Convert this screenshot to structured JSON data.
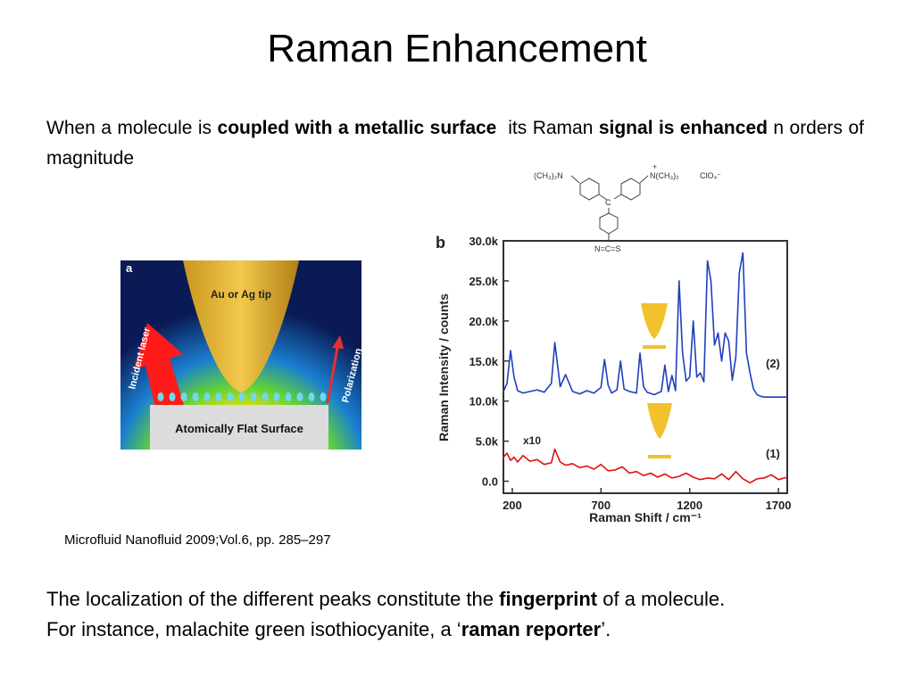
{
  "slide": {
    "title": "Raman Enhancement",
    "intro": {
      "part1": "When a molecule is ",
      "bold1": "coupled with a metallic surface",
      "part2": "  its Raman ",
      "bold2": "signal is enhanced",
      "part3": " n orders of magnitude"
    },
    "citation": "Microfluid Nanofluid 2009;Vol.6, pp. 285–297",
    "bottom": {
      "line1_part1": "The localization of the different peaks constitute the ",
      "line1_bold": "fingerprint",
      "line1_part2": " of a molecule.",
      "line2_part1": "For instance, malachite green isothiocyanite, a ‘",
      "line2_bold": "raman reporter",
      "line2_part2": "’."
    }
  },
  "panel_a": {
    "label": "a",
    "tip_label": "Au or Ag tip",
    "laser_label": "Incident laser",
    "polarization_label": "Polarization",
    "surface_label": "Atomically Flat Surface"
  },
  "molecule": {
    "left_group": "(CH₃)₂N",
    "right_group": "N(CH₃)₂",
    "charge": "+",
    "counter_ion": "ClO₄⁻",
    "center_atom": "C",
    "bottom_group": "N=C=S"
  },
  "panel_b": {
    "label": "b",
    "series_labels": [
      "(2)",
      "(1)"
    ],
    "multiplier_label": "x10",
    "colors": {
      "series2": "#1f3fbf",
      "series1": "#e01010"
    }
  },
  "chart_data": {
    "type": "line",
    "xlabel": "Raman Shift / cm⁻¹",
    "ylabel": "Raman Intensity / counts",
    "xlim": [
      150,
      1750
    ],
    "ylim": [
      -1500,
      30000
    ],
    "x_ticks": [
      "200",
      "700",
      "1200",
      "1700"
    ],
    "y_ticks": [
      "0.0",
      "5.0k",
      "10.0k",
      "15.0k",
      "20.0k",
      "25.0k",
      "30.0k"
    ],
    "series": [
      {
        "name": "(2)",
        "x": [
          150,
          170,
          190,
          210,
          230,
          260,
          300,
          340,
          380,
          420,
          440,
          470,
          500,
          540,
          580,
          620,
          660,
          700,
          720,
          740,
          760,
          790,
          810,
          830,
          860,
          900,
          920,
          940,
          960,
          1000,
          1040,
          1060,
          1080,
          1100,
          1120,
          1140,
          1160,
          1180,
          1200,
          1220,
          1240,
          1260,
          1280,
          1300,
          1320,
          1340,
          1360,
          1380,
          1400,
          1420,
          1440,
          1460,
          1480,
          1500,
          1520,
          1540,
          1560,
          1580,
          1600,
          1620,
          1640,
          1660,
          1680,
          1700,
          1720,
          1750
        ],
        "values": [
          11200,
          12200,
          16300,
          13000,
          11300,
          11000,
          11200,
          11400,
          11100,
          12200,
          17300,
          11800,
          13300,
          11200,
          10900,
          11300,
          11000,
          11700,
          15200,
          12000,
          11000,
          11400,
          15000,
          11500,
          11200,
          11000,
          16000,
          11800,
          11100,
          10800,
          11200,
          14500,
          11200,
          13200,
          11300,
          25000,
          16000,
          12500,
          13000,
          20000,
          13000,
          13500,
          12400,
          27500,
          25000,
          17000,
          18500,
          15000,
          18500,
          17500,
          12600,
          15500,
          26000,
          28500,
          16000,
          13500,
          11500,
          10800,
          10600,
          10500,
          10500,
          10500,
          10500,
          10500,
          10500,
          10500
        ]
      },
      {
        "name": "(1)",
        "x": [
          150,
          170,
          190,
          210,
          230,
          260,
          300,
          340,
          380,
          420,
          440,
          470,
          500,
          540,
          580,
          620,
          660,
          700,
          740,
          780,
          820,
          860,
          900,
          940,
          980,
          1020,
          1060,
          1100,
          1140,
          1180,
          1220,
          1260,
          1300,
          1340,
          1380,
          1420,
          1460,
          1500,
          1540,
          1580,
          1620,
          1660,
          1700,
          1750
        ],
        "values": [
          3000,
          3500,
          2600,
          3000,
          2400,
          3200,
          2500,
          2700,
          2100,
          2300,
          4000,
          2400,
          2000,
          2200,
          1700,
          1900,
          1500,
          2100,
          1300,
          1400,
          1800,
          1000,
          1200,
          700,
          1000,
          500,
          900,
          400,
          600,
          1000,
          500,
          200,
          400,
          300,
          900,
          200,
          1200,
          300,
          -200,
          300,
          400,
          800,
          200,
          500
        ]
      }
    ]
  }
}
